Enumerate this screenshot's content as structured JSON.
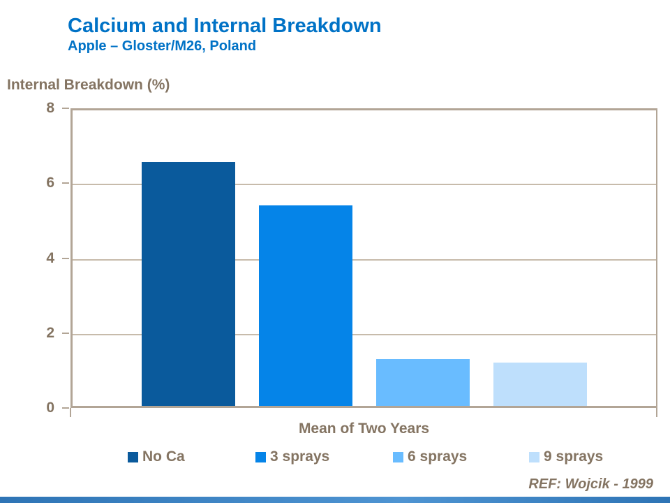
{
  "slide": {
    "title": "Calcium and Internal Breakdown",
    "subtitle": "Apple – Gloster/M26, Poland",
    "reference": "REF: Wojcik - 1999"
  },
  "colors": {
    "title_blue": "#0072C6",
    "text_brown": "#847462",
    "axis_tan": "#B2A596",
    "gridline_tan": "#C7BBAB",
    "footer_blue": "#2E74B5"
  },
  "chart_data": {
    "type": "bar",
    "title": "Calcium and Internal Breakdown",
    "subtitle": "Apple – Gloster/M26, Poland",
    "ylabel": "Internal Breakdown (%)",
    "xlabel": "Mean of Two Years",
    "categories": [
      "No Ca",
      "3 sprays",
      "6 sprays",
      "9 sprays"
    ],
    "x_group_label": "Mean of Two Years",
    "series": [
      {
        "name": "No Ca",
        "values": [
          6.5
        ],
        "color": "#0A5A9C"
      },
      {
        "name": "3 sprays",
        "values": [
          5.35
        ],
        "color": "#0584E8"
      },
      {
        "name": "6 sprays",
        "values": [
          1.25
        ],
        "color": "#69BCFF"
      },
      {
        "name": "9 sprays",
        "values": [
          1.15
        ],
        "color": "#BEDFFC"
      }
    ],
    "values": [
      6.5,
      5.35,
      1.25,
      1.15
    ],
    "ylim": [
      0,
      8
    ],
    "yticks": [
      8,
      6,
      4,
      2,
      0
    ],
    "grid": true,
    "legend_position": "bottom",
    "annotation": "REF: Wojcik - 1999"
  }
}
